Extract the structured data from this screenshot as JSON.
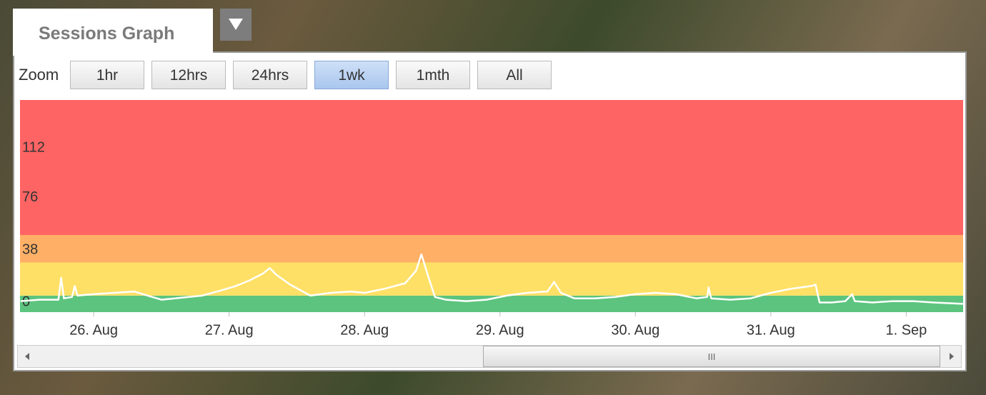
{
  "tab": {
    "title": "Sessions Graph"
  },
  "toolbar": {
    "label": "Zoom",
    "buttons": [
      "1hr",
      "12hrs",
      "24hrs",
      "1wk",
      "1mth",
      "All"
    ],
    "selected": 3
  },
  "scrollbar": {
    "grip": "III"
  },
  "chart_data": {
    "type": "line",
    "x": [
      25.46,
      25.6,
      25.74,
      25.76,
      25.78,
      25.84,
      25.86,
      25.88,
      26.0,
      26.15,
      26.3,
      26.4,
      26.5,
      26.6,
      26.8,
      26.95,
      27.05,
      27.15,
      27.25,
      27.3,
      27.35,
      27.45,
      27.6,
      27.75,
      27.9,
      28.0,
      28.15,
      28.3,
      28.38,
      28.42,
      28.47,
      28.52,
      28.6,
      28.75,
      28.9,
      29.05,
      29.2,
      29.35,
      29.4,
      29.45,
      29.55,
      29.7,
      29.85,
      30.0,
      30.15,
      30.3,
      30.45,
      30.53,
      30.54,
      30.56,
      30.7,
      30.85,
      31.0,
      31.15,
      31.3,
      31.33,
      31.36,
      31.45,
      31.55,
      31.6,
      31.62,
      31.75,
      31.9,
      32.05,
      32.2,
      32.42
    ],
    "series": [
      {
        "color": "#ffffff",
        "values": [
          2,
          3,
          3,
          19,
          4,
          5,
          13,
          6,
          7,
          8,
          9,
          6,
          3,
          4,
          6,
          10,
          13,
          17,
          22,
          26,
          21,
          14,
          6,
          8,
          9,
          8,
          11,
          15,
          24,
          36,
          20,
          5,
          3,
          2,
          3,
          6,
          8,
          9,
          16,
          8,
          4,
          4,
          5,
          7,
          8,
          7,
          4,
          5,
          12,
          4,
          3,
          4,
          8,
          11,
          13,
          14,
          1,
          1,
          2,
          7,
          2,
          1,
          2,
          2,
          1,
          0
        ]
      }
    ],
    "xlim": [
      25.456,
      32.42
    ],
    "xticks": [
      {
        "value": 26,
        "label": "26. Aug"
      },
      {
        "value": 27,
        "label": "27. Aug"
      },
      {
        "value": 28,
        "label": "28. Aug"
      },
      {
        "value": 29,
        "label": "29. Aug"
      },
      {
        "value": 30,
        "label": "30. Aug"
      },
      {
        "value": 31,
        "label": "31. Aug"
      },
      {
        "value": 32,
        "label": "1. Sep"
      }
    ],
    "ylim": [
      -6,
      148
    ],
    "yticks": [
      0,
      38,
      76,
      112
    ],
    "bands": [
      {
        "from": -6,
        "to": 6,
        "color": "#5cc47e"
      },
      {
        "from": 6,
        "to": 30,
        "color": "#ffe066"
      },
      {
        "from": 30,
        "to": 50,
        "color": "#ffb066"
      },
      {
        "from": 50,
        "to": 148,
        "color": "#ff6464"
      }
    ]
  }
}
